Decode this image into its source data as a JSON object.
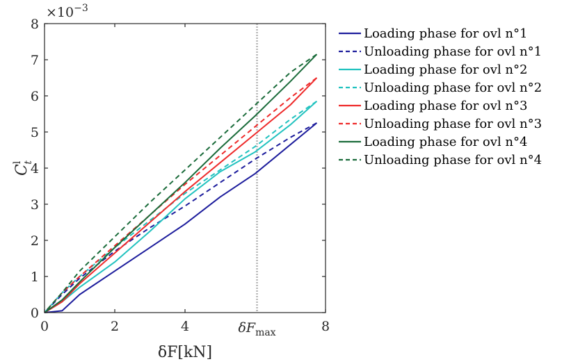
{
  "chart_data": {
    "type": "line",
    "xlabel": "δF[kN]",
    "ylabel": "C",
    "ylabel_sup": "l",
    "ylabel_sub": "t",
    "y_scale_note": "×10",
    "y_scale_exp": "−3",
    "xlim": [
      0,
      8
    ],
    "ylim": [
      0,
      8
    ],
    "x_ticks": [
      0,
      2,
      4,
      8
    ],
    "x_tick_labels": [
      "0",
      "2",
      "4",
      "8"
    ],
    "y_ticks": [
      0,
      1,
      2,
      3,
      4,
      5,
      6,
      7,
      8
    ],
    "y_tick_labels": [
      "0",
      "1",
      "2",
      "3",
      "4",
      "5",
      "6",
      "7",
      "8"
    ],
    "vline": {
      "x": 6.05,
      "label_main": "δF",
      "label_sub": "max",
      "color": "#b3b3b3"
    },
    "grid": false,
    "legend_position": "outside-right",
    "series": [
      {
        "name": "Loading phase for ovl n°1",
        "color": "#1c1c9c",
        "dash": false,
        "points": [
          [
            0,
            0
          ],
          [
            0.5,
            0.05
          ],
          [
            1,
            0.5
          ],
          [
            2,
            1.15
          ],
          [
            3,
            1.8
          ],
          [
            4,
            2.45
          ],
          [
            5,
            3.2
          ],
          [
            6,
            3.85
          ],
          [
            7,
            4.65
          ],
          [
            7.75,
            5.25
          ]
        ]
      },
      {
        "name": "Unloading phase for ovl n°1",
        "color": "#1c1c9c",
        "dash": true,
        "points": [
          [
            7.75,
            5.25
          ],
          [
            7,
            4.85
          ],
          [
            6,
            4.25
          ],
          [
            5,
            3.6
          ],
          [
            4,
            2.95
          ],
          [
            3,
            2.35
          ],
          [
            2,
            1.7
          ],
          [
            1,
            0.95
          ],
          [
            0.5,
            0.5
          ],
          [
            0,
            0
          ]
        ]
      },
      {
        "name": "Loading phase for ovl n°2",
        "color": "#21c2bf",
        "dash": false,
        "points": [
          [
            0,
            0
          ],
          [
            0.5,
            0.3
          ],
          [
            1,
            0.7
          ],
          [
            2,
            1.4
          ],
          [
            3,
            2.25
          ],
          [
            4,
            3.15
          ],
          [
            5,
            3.9
          ],
          [
            6,
            4.45
          ],
          [
            7,
            5.2
          ],
          [
            7.75,
            5.85
          ]
        ]
      },
      {
        "name": "Unloading phase for ovl n°2",
        "color": "#21c2bf",
        "dash": true,
        "points": [
          [
            7.75,
            5.85
          ],
          [
            7,
            5.35
          ],
          [
            6,
            4.6
          ],
          [
            5,
            3.95
          ],
          [
            4,
            3.3
          ],
          [
            3,
            2.55
          ],
          [
            2,
            1.8
          ],
          [
            1,
            1.0
          ],
          [
            0.5,
            0.55
          ],
          [
            0,
            0
          ]
        ]
      },
      {
        "name": "Loading phase for ovl n°3",
        "color": "#ee2a2a",
        "dash": false,
        "points": [
          [
            0,
            0
          ],
          [
            0.5,
            0.3
          ],
          [
            1,
            0.8
          ],
          [
            2,
            1.65
          ],
          [
            3,
            2.5
          ],
          [
            4,
            3.35
          ],
          [
            5,
            4.15
          ],
          [
            6,
            4.95
          ],
          [
            7,
            5.75
          ],
          [
            7.75,
            6.5
          ]
        ]
      },
      {
        "name": "Unloading phase for ovl n°3",
        "color": "#ee2a2a",
        "dash": true,
        "points": [
          [
            7.75,
            6.5
          ],
          [
            7,
            5.95
          ],
          [
            6,
            5.15
          ],
          [
            5,
            4.35
          ],
          [
            4,
            3.55
          ],
          [
            3,
            2.7
          ],
          [
            2,
            1.85
          ],
          [
            1,
            1.0
          ],
          [
            0.5,
            0.55
          ],
          [
            0,
            0
          ]
        ]
      },
      {
        "name": "Loading phase for ovl n°4",
        "color": "#1a6b3a",
        "dash": false,
        "points": [
          [
            0,
            0
          ],
          [
            0.5,
            0.35
          ],
          [
            1,
            0.85
          ],
          [
            2,
            1.8
          ],
          [
            3,
            2.7
          ],
          [
            4,
            3.6
          ],
          [
            5,
            4.55
          ],
          [
            6,
            5.45
          ],
          [
            7,
            6.4
          ],
          [
            7.75,
            7.15
          ]
        ]
      },
      {
        "name": "Unloading phase for ovl n°4",
        "color": "#1a6b3a",
        "dash": true,
        "points": [
          [
            7.75,
            7.15
          ],
          [
            7,
            6.65
          ],
          [
            6,
            5.75
          ],
          [
            5,
            4.85
          ],
          [
            4,
            3.95
          ],
          [
            3,
            3.05
          ],
          [
            2,
            2.1
          ],
          [
            1,
            1.15
          ],
          [
            0.5,
            0.55
          ],
          [
            0,
            0
          ]
        ]
      }
    ]
  }
}
